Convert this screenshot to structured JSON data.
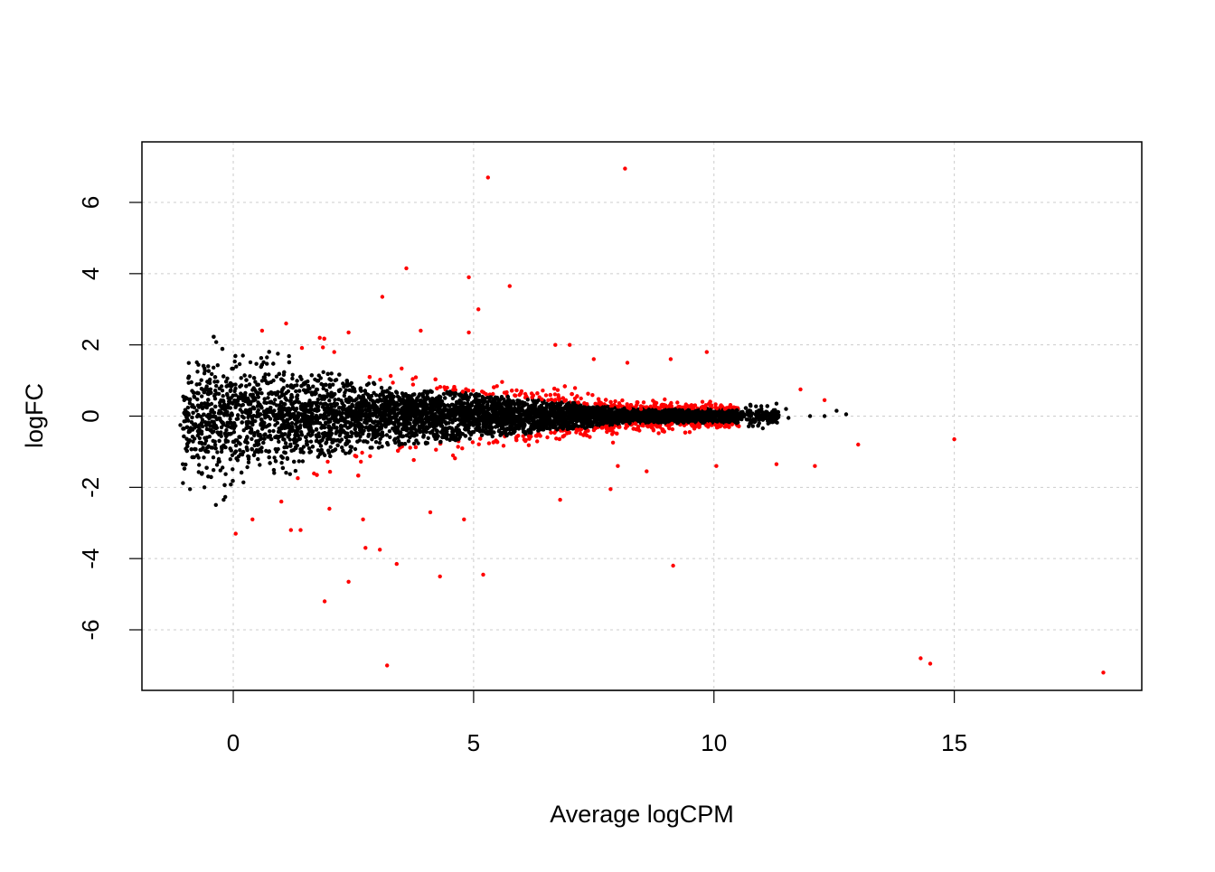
{
  "chart_data": {
    "type": "scatter",
    "xlabel": "Average logCPM",
    "ylabel": "logFC",
    "xlim": [
      -1.9,
      18.9
    ],
    "ylim": [
      -7.7,
      7.7
    ],
    "x_ticks": [
      0,
      5,
      10,
      15
    ],
    "y_ticks": [
      -6,
      -4,
      -2,
      0,
      2,
      4,
      6
    ],
    "x_tick_labels": [
      "0",
      "5",
      "10",
      "15"
    ],
    "y_tick_labels": [
      "-6",
      "-4",
      "-2",
      "0",
      "2",
      "4",
      "6"
    ],
    "grid": true,
    "colors": {
      "not_significant": "#000000",
      "significant": "#ff0000",
      "grid": "#cccccc"
    },
    "series": [
      {
        "color": "#ff0000",
        "points": [
          [
            5.3,
            6.7
          ],
          [
            8.15,
            6.95
          ],
          [
            3.6,
            4.15
          ],
          [
            4.9,
            3.9
          ],
          [
            5.75,
            3.65
          ],
          [
            3.1,
            3.35
          ],
          [
            5.1,
            3.0
          ],
          [
            1.1,
            2.6
          ],
          [
            0.6,
            2.4
          ],
          [
            2.4,
            2.35
          ],
          [
            3.9,
            2.4
          ],
          [
            4.9,
            2.35
          ],
          [
            6.7,
            2.0
          ],
          [
            7.0,
            2.0
          ],
          [
            9.85,
            1.8
          ],
          [
            9.1,
            1.6
          ],
          [
            1.8,
            2.2
          ],
          [
            2.1,
            1.8
          ],
          [
            7.5,
            1.6
          ],
          [
            8.2,
            1.5
          ],
          [
            1.0,
            -2.4
          ],
          [
            0.4,
            -2.9
          ],
          [
            0.05,
            -3.3
          ],
          [
            1.2,
            -3.2
          ],
          [
            1.4,
            -3.2
          ],
          [
            2.0,
            -2.6
          ],
          [
            2.7,
            -2.9
          ],
          [
            2.75,
            -3.7
          ],
          [
            3.05,
            -3.75
          ],
          [
            3.4,
            -4.15
          ],
          [
            2.4,
            -4.65
          ],
          [
            1.9,
            -5.2
          ],
          [
            4.3,
            -4.5
          ],
          [
            5.2,
            -4.45
          ],
          [
            4.8,
            -2.9
          ],
          [
            4.1,
            -2.7
          ],
          [
            9.15,
            -4.2
          ],
          [
            6.8,
            -2.35
          ],
          [
            7.85,
            -2.05
          ],
          [
            3.2,
            -7.0
          ],
          [
            14.3,
            -6.8
          ],
          [
            14.5,
            -6.95
          ],
          [
            18.1,
            -7.2
          ],
          [
            15.0,
            -0.65
          ],
          [
            13.0,
            -0.8
          ],
          [
            12.1,
            -1.4
          ],
          [
            11.3,
            -1.35
          ],
          [
            10.05,
            -1.4
          ],
          [
            11.8,
            0.75
          ],
          [
            12.3,
            0.45
          ],
          [
            8.6,
            -1.55
          ],
          [
            8.0,
            -1.4
          ]
        ]
      },
      {
        "color": "#000000",
        "points": [
          [
            -1.1,
            -0.25
          ],
          [
            -1.05,
            -1.35
          ],
          [
            -0.9,
            -2.05
          ],
          [
            -0.6,
            -2.0
          ],
          [
            -0.2,
            -2.35
          ],
          [
            0.2,
            1.7
          ],
          [
            0.7,
            1.65
          ],
          [
            11.55,
            -0.05
          ],
          [
            12.0,
            0.0
          ],
          [
            12.3,
            0.0
          ],
          [
            12.55,
            0.15
          ],
          [
            12.75,
            0.05
          ],
          [
            11.5,
            0.2
          ],
          [
            11.3,
            0.35
          ],
          [
            -0.6,
            1.2
          ],
          [
            -0.7,
            0.9
          ]
        ]
      }
    ],
    "bulk": {
      "description_only_for_script": null
    }
  }
}
